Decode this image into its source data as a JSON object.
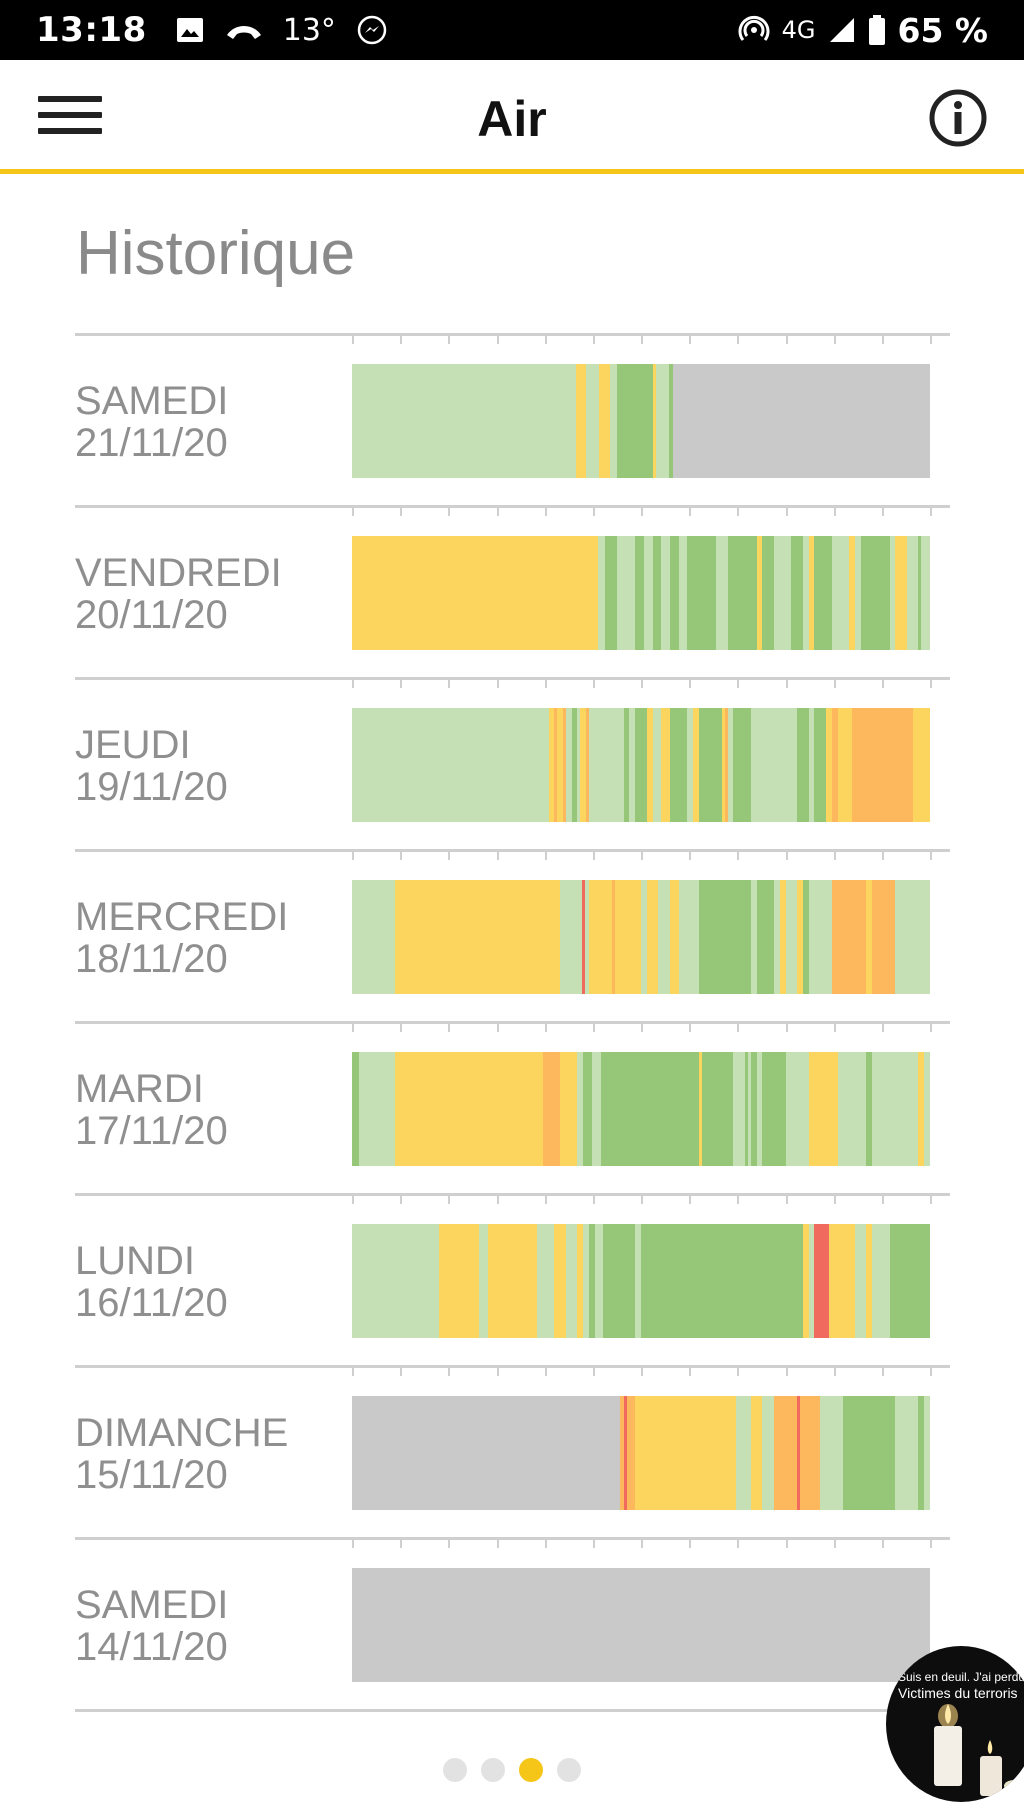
{
  "status_bar": {
    "time": "13:18",
    "temperature": "13°",
    "network": "4G",
    "battery": "65 %"
  },
  "app_bar": {
    "title": "Air",
    "menu_icon": "menu-icon",
    "info_icon": "info-icon"
  },
  "section_title": "Historique",
  "colors": {
    "accent": "#f5c518",
    "no_data": "#c9c9c9",
    "light_green": "#c4e0b4",
    "green": "#96c779",
    "yellow": "#fcd55e",
    "orange": "#fdb85d",
    "red": "#f06a5e"
  },
  "days": [
    {
      "day": "SAMEDI",
      "date": "21/11/20",
      "segments": [
        [
          "lg",
          0,
          0.388
        ],
        [
          "y",
          0.388,
          0.404
        ],
        [
          "lg",
          0.404,
          0.428
        ],
        [
          "y",
          0.428,
          0.446
        ],
        [
          "lg",
          0.446,
          0.458
        ],
        [
          "g",
          0.458,
          0.52
        ],
        [
          "y",
          0.52,
          0.526
        ],
        [
          "lg",
          0.526,
          0.548
        ],
        [
          "g",
          0.548,
          0.556
        ],
        [
          "n",
          0.556,
          1
        ]
      ]
    },
    {
      "day": "VENDREDI",
      "date": "20/11/20",
      "segments": [
        [
          "y",
          0,
          0.425
        ],
        [
          "lg",
          0.425,
          0.438
        ],
        [
          "g",
          0.438,
          0.458
        ],
        [
          "lg",
          0.458,
          0.49
        ],
        [
          "g",
          0.49,
          0.505
        ],
        [
          "lg",
          0.505,
          0.52
        ],
        [
          "g",
          0.52,
          0.535
        ],
        [
          "lg",
          0.535,
          0.55
        ],
        [
          "g",
          0.55,
          0.565
        ],
        [
          "lg",
          0.565,
          0.58
        ],
        [
          "g",
          0.58,
          0.63
        ],
        [
          "lg",
          0.63,
          0.65
        ],
        [
          "g",
          0.65,
          0.7
        ],
        [
          "y",
          0.7,
          0.71
        ],
        [
          "g",
          0.71,
          0.73
        ],
        [
          "lg",
          0.73,
          0.76
        ],
        [
          "g",
          0.76,
          0.78
        ],
        [
          "lg",
          0.78,
          0.79
        ],
        [
          "y",
          0.79,
          0.8
        ],
        [
          "g",
          0.8,
          0.83
        ],
        [
          "lg",
          0.83,
          0.86
        ],
        [
          "y",
          0.86,
          0.87
        ],
        [
          "lg",
          0.87,
          0.88
        ],
        [
          "g",
          0.88,
          0.93
        ],
        [
          "lg",
          0.93,
          0.94
        ],
        [
          "y",
          0.94,
          0.96
        ],
        [
          "lg",
          0.96,
          0.98
        ],
        [
          "g",
          0.98,
          0.985
        ],
        [
          "lg",
          0.985,
          1
        ]
      ]
    },
    {
      "day": "JEUDI",
      "date": "19/11/20",
      "segments": [
        [
          "lg",
          0,
          0.34
        ],
        [
          "y",
          0.34,
          0.35
        ],
        [
          "o",
          0.35,
          0.355
        ],
        [
          "y",
          0.355,
          0.365
        ],
        [
          "o",
          0.365,
          0.37
        ],
        [
          "lg",
          0.37,
          0.38
        ],
        [
          "g",
          0.38,
          0.39
        ],
        [
          "lg",
          0.39,
          0.395
        ],
        [
          "y",
          0.395,
          0.405
        ],
        [
          "o",
          0.405,
          0.41
        ],
        [
          "lg",
          0.41,
          0.47
        ],
        [
          "g",
          0.47,
          0.48
        ],
        [
          "lg",
          0.48,
          0.49
        ],
        [
          "g",
          0.49,
          0.51
        ],
        [
          "y",
          0.51,
          0.52
        ],
        [
          "lg",
          0.52,
          0.535
        ],
        [
          "y",
          0.535,
          0.55
        ],
        [
          "g",
          0.55,
          0.58
        ],
        [
          "lg",
          0.58,
          0.59
        ],
        [
          "y",
          0.59,
          0.6
        ],
        [
          "g",
          0.6,
          0.64
        ],
        [
          "y",
          0.64,
          0.645
        ],
        [
          "o",
          0.645,
          0.65
        ],
        [
          "lg",
          0.65,
          0.66
        ],
        [
          "g",
          0.66,
          0.69
        ],
        [
          "lg",
          0.69,
          0.77
        ],
        [
          "g",
          0.77,
          0.79
        ],
        [
          "lg",
          0.79,
          0.8
        ],
        [
          "g",
          0.8,
          0.82
        ],
        [
          "y",
          0.82,
          0.83
        ],
        [
          "o",
          0.83,
          0.84
        ],
        [
          "y",
          0.84,
          0.865
        ],
        [
          "o",
          0.865,
          0.97
        ],
        [
          "y",
          0.97,
          1
        ]
      ]
    },
    {
      "day": "MERCREDI",
      "date": "18/11/20",
      "segments": [
        [
          "lg",
          0,
          0.075
        ],
        [
          "y",
          0.075,
          0.36
        ],
        [
          "lg",
          0.36,
          0.398
        ],
        [
          "r",
          0.398,
          0.403
        ],
        [
          "lg",
          0.403,
          0.41
        ],
        [
          "y",
          0.41,
          0.45
        ],
        [
          "o",
          0.45,
          0.455
        ],
        [
          "y",
          0.455,
          0.5
        ],
        [
          "lg",
          0.5,
          0.51
        ],
        [
          "y",
          0.51,
          0.53
        ],
        [
          "lg",
          0.53,
          0.55
        ],
        [
          "y",
          0.55,
          0.565
        ],
        [
          "lg",
          0.565,
          0.6
        ],
        [
          "g",
          0.6,
          0.69
        ],
        [
          "lg",
          0.69,
          0.7
        ],
        [
          "g",
          0.7,
          0.73
        ],
        [
          "lg",
          0.73,
          0.74
        ],
        [
          "y",
          0.74,
          0.75
        ],
        [
          "lg",
          0.75,
          0.77
        ],
        [
          "y",
          0.77,
          0.78
        ],
        [
          "g",
          0.78,
          0.79
        ],
        [
          "lg",
          0.79,
          0.83
        ],
        [
          "o",
          0.83,
          0.89
        ],
        [
          "y",
          0.89,
          0.9
        ],
        [
          "o",
          0.9,
          0.94
        ],
        [
          "lg",
          0.94,
          1
        ]
      ]
    },
    {
      "day": "MARDI",
      "date": "17/11/20",
      "segments": [
        [
          "g",
          0,
          0.012
        ],
        [
          "lg",
          0.012,
          0.075
        ],
        [
          "y",
          0.075,
          0.33
        ],
        [
          "o",
          0.33,
          0.36
        ],
        [
          "y",
          0.36,
          0.39
        ],
        [
          "lg",
          0.39,
          0.4
        ],
        [
          "g",
          0.4,
          0.415
        ],
        [
          "lg",
          0.415,
          0.43
        ],
        [
          "g",
          0.43,
          0.6
        ],
        [
          "y",
          0.6,
          0.605
        ],
        [
          "g",
          0.605,
          0.66
        ],
        [
          "lg",
          0.66,
          0.68
        ],
        [
          "g",
          0.68,
          0.685
        ],
        [
          "lg",
          0.685,
          0.69
        ],
        [
          "g",
          0.69,
          0.7
        ],
        [
          "lg",
          0.7,
          0.71
        ],
        [
          "g",
          0.71,
          0.75
        ],
        [
          "lg",
          0.75,
          0.79
        ],
        [
          "y",
          0.79,
          0.84
        ],
        [
          "lg",
          0.84,
          0.89
        ],
        [
          "g",
          0.89,
          0.9
        ],
        [
          "lg",
          0.9,
          0.98
        ],
        [
          "y",
          0.98,
          0.99
        ],
        [
          "lg",
          0.99,
          1
        ]
      ]
    },
    {
      "day": "LUNDI",
      "date": "16/11/20",
      "segments": [
        [
          "lg",
          0,
          0.15
        ],
        [
          "y",
          0.15,
          0.22
        ],
        [
          "lg",
          0.22,
          0.235
        ],
        [
          "y",
          0.235,
          0.32
        ],
        [
          "lg",
          0.32,
          0.35
        ],
        [
          "y",
          0.35,
          0.37
        ],
        [
          "lg",
          0.37,
          0.39
        ],
        [
          "y",
          0.39,
          0.4
        ],
        [
          "lg",
          0.4,
          0.41
        ],
        [
          "g",
          0.41,
          0.42
        ],
        [
          "lg",
          0.42,
          0.435
        ],
        [
          "g",
          0.435,
          0.49
        ],
        [
          "lg",
          0.49,
          0.5
        ],
        [
          "g",
          0.5,
          0.54
        ],
        [
          "lg",
          0.54,
          0.54
        ],
        [
          "g",
          0.54,
          0.78
        ],
        [
          "y",
          0.78,
          0.79
        ],
        [
          "lg",
          0.79,
          0.8
        ],
        [
          "r",
          0.8,
          0.825
        ],
        [
          "y",
          0.825,
          0.87
        ],
        [
          "lg",
          0.87,
          0.89
        ],
        [
          "y",
          0.89,
          0.9
        ],
        [
          "lg",
          0.9,
          0.93
        ],
        [
          "g",
          0.93,
          1
        ]
      ]
    },
    {
      "day": "DIMANCHE",
      "date": "15/11/20",
      "segments": [
        [
          "n",
          0,
          0.463
        ],
        [
          "o",
          0.463,
          0.47
        ],
        [
          "r",
          0.47,
          0.475
        ],
        [
          "o",
          0.475,
          0.49
        ],
        [
          "y",
          0.49,
          0.665
        ],
        [
          "lg",
          0.665,
          0.69
        ],
        [
          "y",
          0.69,
          0.71
        ],
        [
          "lg",
          0.71,
          0.73
        ],
        [
          "o",
          0.73,
          0.77
        ],
        [
          "r",
          0.77,
          0.775
        ],
        [
          "o",
          0.775,
          0.81
        ],
        [
          "lg",
          0.81,
          0.85
        ],
        [
          "g",
          0.85,
          0.94
        ],
        [
          "lg",
          0.94,
          0.98
        ],
        [
          "g",
          0.98,
          0.99
        ],
        [
          "lg",
          0.99,
          1
        ]
      ]
    },
    {
      "day": "SAMEDI",
      "date": "14/11/20",
      "segments": [
        [
          "n",
          0,
          1
        ]
      ]
    }
  ],
  "pager": {
    "count": 4,
    "active": 2
  },
  "floating_bubble": {
    "line1": "Suis en deuil. J'ai perdu",
    "line2": "Victimes du terroris"
  }
}
